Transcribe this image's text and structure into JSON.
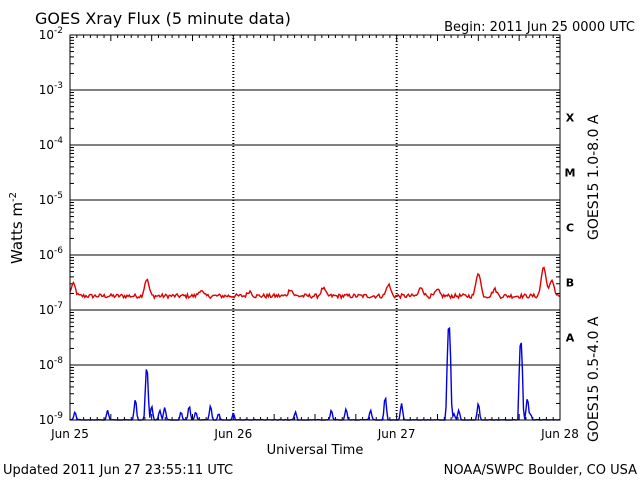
{
  "chart_data": {
    "type": "line",
    "title": "GOES Xray Flux (5 minute data)",
    "begin_label": "Begin:  2011 Jun 25 0000 UTC",
    "ylabel_main": "Watts m",
    "ylabel_exp": "-2",
    "xlabel": "Universal Time",
    "y_scale": "log",
    "ylim": [
      1e-09,
      0.01
    ],
    "y_ticks": [
      {
        "exp": "-2"
      },
      {
        "exp": "-3"
      },
      {
        "exp": "-4"
      },
      {
        "exp": "-5"
      },
      {
        "exp": "-6"
      },
      {
        "exp": "-7"
      },
      {
        "exp": "-8"
      },
      {
        "exp": "-9"
      }
    ],
    "x_range_days": [
      0,
      3
    ],
    "x_ticks": [
      "Jun 25",
      "Jun 26",
      "Jun 27",
      "Jun 28"
    ],
    "flare_classes": [
      "X",
      "M",
      "C",
      "B",
      "A"
    ],
    "grid": "horizontal solid at each decade, vertical dashed at day boundaries",
    "series": [
      {
        "name": "GOES15 1.0-8.0 A",
        "color": "#e00000",
        "baseline": 1.8e-07,
        "spikes": [
          [
            0.02,
            3e-07
          ],
          [
            0.47,
            3.6e-07
          ],
          [
            0.8,
            2.3e-07
          ],
          [
            1.1,
            2.2e-07
          ],
          [
            1.35,
            2.4e-07
          ],
          [
            1.55,
            2.5e-07
          ],
          [
            1.95,
            2.9e-07
          ],
          [
            2.15,
            2.6e-07
          ],
          [
            2.25,
            2.3e-07
          ],
          [
            2.5,
            4.7e-07
          ],
          [
            2.6,
            2.4e-07
          ],
          [
            2.9,
            6e-07
          ],
          [
            2.95,
            3.5e-07
          ]
        ]
      },
      {
        "name": "GOES15 0.5-4.0 A",
        "color": "#0000e0",
        "baseline": 1e-09,
        "spikes": [
          [
            0.03,
            1.4e-09
          ],
          [
            0.23,
            1.5e-09
          ],
          [
            0.4,
            2.4e-09
          ],
          [
            0.47,
            9e-09
          ],
          [
            0.5,
            1.8e-09
          ],
          [
            0.55,
            1.5e-09
          ],
          [
            0.58,
            1.7e-09
          ],
          [
            0.68,
            1.4e-09
          ],
          [
            0.73,
            1.8e-09
          ],
          [
            0.77,
            1.4e-09
          ],
          [
            0.86,
            1.8e-09
          ],
          [
            0.91,
            1.3e-09
          ],
          [
            1.0,
            1.3e-09
          ],
          [
            1.38,
            1.4e-09
          ],
          [
            1.6,
            1.5e-09
          ],
          [
            1.69,
            1.6e-09
          ],
          [
            1.84,
            1.5e-09
          ],
          [
            1.93,
            2.6e-09
          ],
          [
            2.03,
            2e-09
          ],
          [
            2.32,
            5.4e-08
          ],
          [
            2.35,
            1.3e-09
          ],
          [
            2.38,
            1.5e-09
          ],
          [
            2.5,
            2e-09
          ],
          [
            2.76,
            2.8e-08
          ],
          [
            2.8,
            2.5e-09
          ],
          [
            2.82,
            1.3e-09
          ]
        ]
      }
    ]
  },
  "footer": {
    "updated": "Updated 2011 Jun 27 23:55:11 UTC",
    "credit": "NOAA/SWPC Boulder, CO USA"
  }
}
